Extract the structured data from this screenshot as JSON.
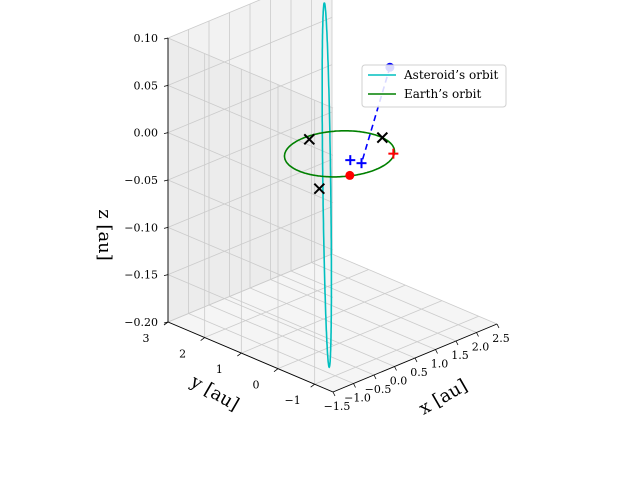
{
  "chart_data": {
    "type": "line",
    "projection": "3d",
    "legend": {
      "placement": "top-right",
      "entries": [
        {
          "label": "Asteroid’s orbit",
          "color": "#00bfbf"
        },
        {
          "label": "Earth’s orbit",
          "color": "#008000"
        }
      ]
    },
    "axes": {
      "x": {
        "label": "x [au]",
        "range": [
          -1.5,
          2.5
        ],
        "ticks": [
          -1.5,
          -1.0,
          -0.5,
          0.0,
          0.5,
          1.0,
          1.5,
          2.0,
          2.5
        ],
        "tick_labels": [
          "−1.5",
          "−1.0",
          "−0.5",
          "0.0",
          "0.5",
          "1.0",
          "1.5",
          "2.0",
          "2.5"
        ]
      },
      "y": {
        "label": "y [au]",
        "range": [
          -1.5,
          3
        ],
        "ticks": [
          -1,
          0,
          1,
          2,
          3
        ],
        "tick_labels": [
          "−1",
          "0",
          "1",
          "2",
          "3"
        ]
      },
      "z": {
        "label": "z [au]",
        "range": [
          -0.2,
          0.1
        ],
        "ticks": [
          -0.2,
          -0.15,
          -0.1,
          -0.05,
          0.0,
          0.05,
          0.1
        ],
        "tick_labels": [
          "−0.20",
          "−0.15",
          "−0.10",
          "−0.05",
          "0.00",
          "0.05",
          "0.10"
        ]
      },
      "grid": true
    },
    "series": [
      {
        "name": "Asteroid’s orbit",
        "kind": "ellipse",
        "color": "#00bfbf",
        "center": [
          0.45,
          0.85,
          -0.055
        ],
        "u": [
          1.55,
          1.8,
          0.135
        ],
        "v": [
          -0.06,
          0.04,
          0.0
        ]
      },
      {
        "name": "Earth’s orbit",
        "kind": "ellipse",
        "color": "#008000",
        "center": [
          0,
          0,
          0
        ],
        "u": [
          1,
          0,
          0
        ],
        "v": [
          0,
          1,
          0
        ]
      }
    ],
    "markers": [
      {
        "symbol": "x",
        "color": "#000000",
        "point": [
          0.05,
          0.88,
          0.0
        ]
      },
      {
        "symbol": "x",
        "color": "#000000",
        "point": [
          1.0,
          -0.05,
          0.0
        ]
      },
      {
        "symbol": "x",
        "color": "#000000",
        "point": [
          -0.85,
          -0.4,
          -0.015
        ]
      },
      {
        "symbol": "dot",
        "color": "#ff0000",
        "point": [
          -0.5,
          -0.84,
          0.0
        ]
      },
      {
        "symbol": "plus",
        "color": "#ff0000",
        "point": [
          0.67,
          -0.72,
          0.0
        ]
      },
      {
        "symbol": "dot",
        "color": "#0000ff",
        "point": [
          1.9,
          0.75,
          0.045
        ]
      },
      {
        "symbol": "plus",
        "color": "#0000ff",
        "point": [
          0.0,
          -0.6,
          0.0
        ]
      },
      {
        "symbol": "plus",
        "color": "#0000ff",
        "point": [
          -0.05,
          -0.35,
          0.0
        ]
      }
    ],
    "dashed_lines": [
      {
        "color": "#0000ff",
        "from": [
          1.9,
          0.75,
          0.045
        ],
        "to": [
          0.0,
          -0.6,
          0.0
        ]
      }
    ]
  }
}
